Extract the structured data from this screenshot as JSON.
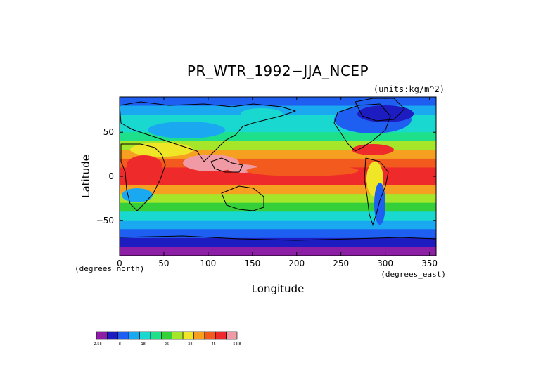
{
  "chart_data": {
    "type": "heatmap",
    "title": "PR_WTR_1992−JJA_NCEP",
    "units": "(units:kg/m^2)",
    "xlabel": "Longitude",
    "ylabel": "Latitude",
    "x_unit_note": "(degrees_east)",
    "y_unit_note": "(degrees_north)",
    "xlim": [
      0,
      357.5
    ],
    "ylim": [
      -90,
      90
    ],
    "x_ticks": [
      0,
      50,
      100,
      150,
      200,
      250,
      300,
      350
    ],
    "y_ticks": [
      -50,
      0,
      50
    ],
    "colorbar": {
      "tick_labels": [
        "−2.58",
        "8",
        "18",
        "25",
        "38",
        "45",
        "53.8"
      ],
      "colors": [
        "#8c1fa6",
        "#1c1cc0",
        "#1e5ef0",
        "#1aa9f0",
        "#18d8d0",
        "#1fe08a",
        "#34d03a",
        "#a6e62a",
        "#f0e628",
        "#f5a020",
        "#f25a1e",
        "#ee2a2a",
        "#f09aa6"
      ]
    },
    "series": [
      {
        "lat_bands": [
          85,
          75,
          65,
          55,
          45,
          35,
          25,
          15,
          5,
          -5,
          -15,
          -25,
          -35,
          -45,
          -55,
          -65,
          -75,
          -85
        ],
        "values": [
          8,
          12,
          15,
          18,
          22,
          28,
          38,
          45,
          48,
          46,
          40,
          32,
          24,
          18,
          12,
          8,
          4,
          1
        ]
      }
    ]
  },
  "colors": {
    "background": "#ffffff",
    "coastline": "#000000"
  }
}
